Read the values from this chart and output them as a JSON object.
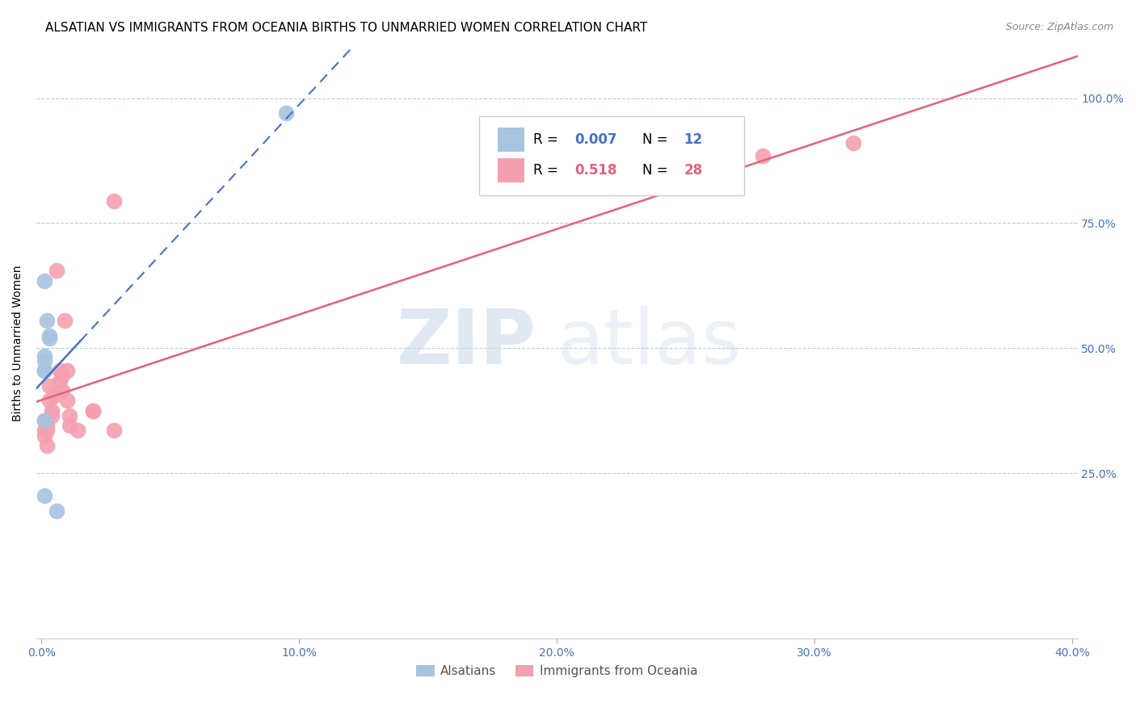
{
  "title": "ALSATIAN VS IMMIGRANTS FROM OCEANIA BIRTHS TO UNMARRIED WOMEN CORRELATION CHART",
  "source": "Source: ZipAtlas.com",
  "ylabel": "Births to Unmarried Women",
  "ylabel_ticks": [
    0.25,
    0.5,
    0.75,
    1.0
  ],
  "xlim": [
    -0.002,
    0.402
  ],
  "ylim": [
    -0.08,
    1.1
  ],
  "alsatian_R": 0.007,
  "alsatian_N": 12,
  "oceania_R": 0.518,
  "oceania_N": 28,
  "alsatian_color": "#a8c4e0",
  "oceania_color": "#f4a0b0",
  "alsatian_line_color": "#4472c4",
  "oceania_line_color": "#e8607a",
  "legend_R_color_alsatian": "#4472c4",
  "legend_R_color_oceania": "#e8607a",
  "alsatian_x": [
    0.001,
    0.002,
    0.003,
    0.001,
    0.001,
    0.001,
    0.001,
    0.001,
    0.001,
    0.003,
    0.006,
    0.095
  ],
  "alsatian_y": [
    0.635,
    0.555,
    0.525,
    0.485,
    0.475,
    0.455,
    0.455,
    0.205,
    0.355,
    0.52,
    0.175,
    0.97
  ],
  "oceania_x": [
    0.001,
    0.001,
    0.001,
    0.002,
    0.002,
    0.002,
    0.003,
    0.003,
    0.004,
    0.004,
    0.005,
    0.006,
    0.007,
    0.007,
    0.008,
    0.008,
    0.009,
    0.01,
    0.01,
    0.011,
    0.011,
    0.014,
    0.02,
    0.02,
    0.028,
    0.028,
    0.28,
    0.315
  ],
  "oceania_y": [
    0.355,
    0.335,
    0.325,
    0.345,
    0.335,
    0.305,
    0.425,
    0.395,
    0.375,
    0.365,
    0.405,
    0.655,
    0.455,
    0.435,
    0.445,
    0.415,
    0.555,
    0.455,
    0.395,
    0.365,
    0.345,
    0.335,
    0.375,
    0.375,
    0.795,
    0.335,
    0.885,
    0.91
  ],
  "background_color": "#ffffff",
  "grid_color": "#b8ccd8",
  "title_fontsize": 11,
  "source_fontsize": 9,
  "axis_label_fontsize": 10,
  "tick_fontsize": 10,
  "legend_fontsize": 12
}
